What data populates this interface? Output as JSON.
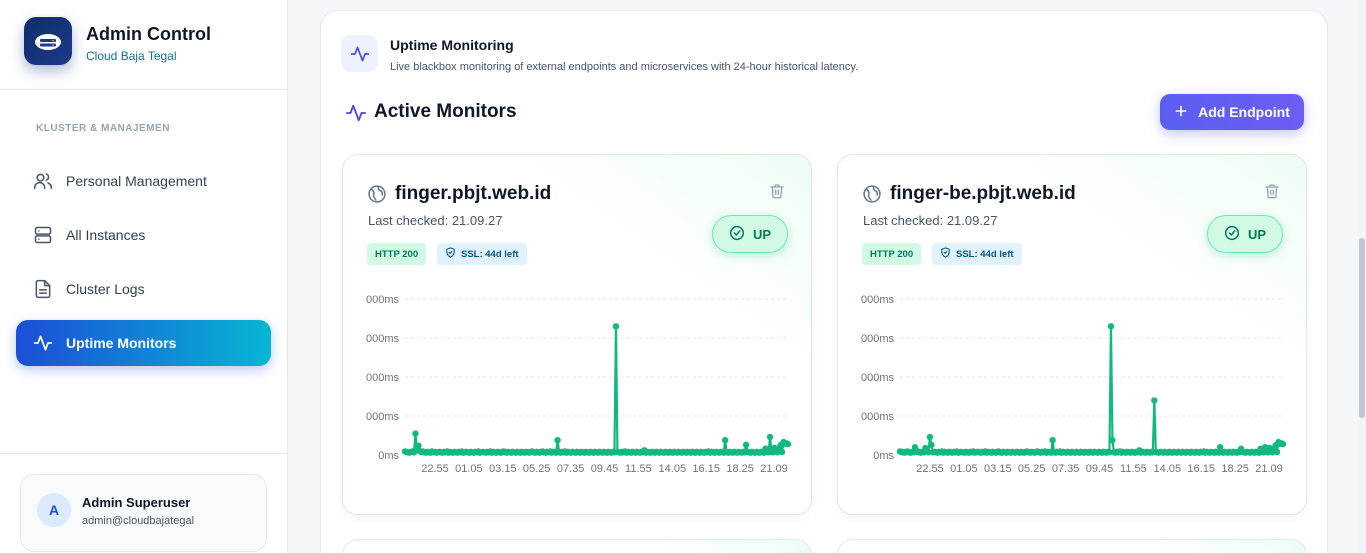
{
  "brand": {
    "title": "Admin Control",
    "subtitle": "Cloud Baja Tegal"
  },
  "sidebar": {
    "section_label": "KLUSTER & MANAJEMEN",
    "items": [
      {
        "label": "Personal Management",
        "icon": "users-icon",
        "active": false
      },
      {
        "label": "All Instances",
        "icon": "server-icon",
        "active": false
      },
      {
        "label": "Cluster Logs",
        "icon": "document-icon",
        "active": false
      },
      {
        "label": "Uptime Monitors",
        "icon": "activity-icon",
        "active": true
      }
    ]
  },
  "user": {
    "initial": "A",
    "name": "Admin Superuser",
    "email": "admin@cloudbajategal"
  },
  "header": {
    "title": "Uptime Monitoring",
    "subtitle": "Live blackbox monitoring of external endpoints and microservices with 24-hour historical latency."
  },
  "monitors_section": {
    "title": "Active Monitors",
    "add_button": "Add Endpoint"
  },
  "monitors": [
    {
      "host": "finger.pbjt.web.id",
      "last_checked": "Last checked: 21.09.27",
      "http": "HTTP 200",
      "ssl": "SSL: 44d left",
      "status": "UP"
    },
    {
      "host": "finger-be.pbjt.web.id",
      "last_checked": "Last checked: 21.09.27",
      "http": "HTTP 200",
      "ssl": "SSL: 44d left",
      "status": "UP"
    }
  ],
  "colors": {
    "accent": "#5b5ff0",
    "active_nav_start": "#1d4ed8",
    "active_nav_end": "#06b6d4",
    "up_green": "#10b981",
    "line": "#10b981"
  },
  "chart_data": [
    {
      "type": "line",
      "y_tick_labels": [
        "0ms",
        "000ms",
        "000ms",
        "000ms",
        "000ms"
      ],
      "y_ticks": [
        0,
        1000,
        2000,
        3000,
        4000
      ],
      "x_tick_labels": [
        "22.55",
        "01.05",
        "03.15",
        "05.25",
        "07.35",
        "09.45",
        "11.55",
        "14.05",
        "16.15",
        "18.25",
        "21.09"
      ],
      "ylim": [
        0,
        4000
      ],
      "grid": true,
      "series": [
        {
          "values": [
            90,
            80,
            70,
            60,
            80,
            90,
            70,
            550,
            120,
            240,
            100,
            80,
            90,
            70,
            60,
            80,
            70,
            60,
            90,
            70,
            80,
            60,
            70,
            80,
            70,
            60,
            80,
            70,
            90,
            60,
            80,
            70,
            60,
            80,
            70,
            60,
            80,
            70,
            90,
            60,
            70,
            80,
            70,
            60,
            80,
            70,
            60,
            80,
            70,
            90,
            60,
            70,
            80,
            70,
            60,
            80,
            70,
            90,
            60,
            80,
            70,
            60,
            80,
            70,
            60,
            80,
            90,
            70,
            60,
            80,
            70,
            60,
            80,
            70,
            60,
            80,
            70,
            60,
            80,
            70,
            60,
            80,
            70,
            60,
            80,
            90,
            70,
            60,
            80,
            70,
            60,
            80,
            90,
            70,
            60,
            80,
            70,
            90,
            60,
            80,
            70,
            60,
            380,
            70,
            60,
            80,
            70,
            90,
            60,
            80,
            70,
            60,
            80,
            70,
            60,
            80,
            70,
            60,
            80,
            70,
            60,
            80,
            70,
            60,
            80,
            70,
            60,
            80,
            70,
            60,
            80,
            70,
            60,
            80,
            70,
            60,
            80,
            70,
            60,
            80,
            70,
            3300,
            80,
            70,
            60,
            80,
            70,
            90,
            60,
            80,
            70,
            60,
            80,
            70,
            60,
            80,
            70,
            60,
            80,
            70,
            120,
            60,
            80,
            70,
            60,
            80,
            70,
            60,
            80,
            70,
            60,
            80,
            70,
            60,
            80,
            70,
            60,
            80,
            70,
            60,
            80,
            70,
            60,
            80,
            70,
            60,
            80,
            70,
            60,
            80,
            70,
            60,
            80,
            70,
            60,
            80,
            70,
            60,
            80,
            70,
            60,
            80,
            70,
            90,
            60,
            80,
            70,
            60,
            80,
            70,
            60,
            80,
            70,
            60,
            380,
            70,
            60,
            80,
            70,
            60,
            80,
            70,
            60,
            80,
            70,
            60,
            80,
            70,
            260,
            80,
            70,
            60,
            80,
            70,
            60,
            80,
            70,
            60,
            80,
            70,
            60,
            160,
            80,
            70,
            460,
            80,
            70,
            180,
            90,
            70,
            160,
            250,
            80,
            330,
            290,
            300,
            280
          ]
        }
      ]
    },
    {
      "type": "line",
      "y_tick_labels": [
        "0ms",
        "000ms",
        "000ms",
        "000ms",
        "000ms"
      ],
      "y_ticks": [
        0,
        1000,
        2000,
        3000,
        4000
      ],
      "x_tick_labels": [
        "22.55",
        "01.05",
        "03.15",
        "05.25",
        "07.35",
        "09.45",
        "11.55",
        "14.05",
        "16.15",
        "18.25",
        "21.09"
      ],
      "ylim": [
        0,
        4000
      ],
      "grid": true,
      "series": [
        {
          "values": [
            90,
            80,
            70,
            60,
            80,
            90,
            70,
            60,
            80,
            70,
            200,
            80,
            90,
            70,
            60,
            80,
            70,
            180,
            90,
            70,
            460,
            260,
            70,
            80,
            70,
            60,
            80,
            70,
            90,
            60,
            80,
            70,
            60,
            80,
            70,
            60,
            80,
            70,
            90,
            60,
            70,
            80,
            70,
            60,
            80,
            70,
            60,
            80,
            70,
            90,
            60,
            70,
            80,
            70,
            60,
            80,
            70,
            90,
            60,
            80,
            70,
            60,
            80,
            70,
            60,
            80,
            90,
            70,
            60,
            80,
            70,
            60,
            80,
            70,
            60,
            80,
            70,
            60,
            80,
            70,
            60,
            80,
            70,
            60,
            80,
            90,
            70,
            60,
            80,
            70,
            60,
            80,
            90,
            70,
            60,
            80,
            70,
            90,
            60,
            80,
            70,
            60,
            380,
            70,
            60,
            80,
            70,
            90,
            60,
            80,
            70,
            60,
            80,
            70,
            60,
            80,
            70,
            60,
            80,
            70,
            60,
            80,
            70,
            60,
            80,
            70,
            60,
            80,
            70,
            60,
            80,
            70,
            60,
            80,
            70,
            60,
            80,
            70,
            60,
            80,
            70,
            3300,
            380,
            70,
            60,
            80,
            70,
            90,
            60,
            80,
            70,
            60,
            80,
            70,
            60,
            80,
            70,
            60,
            80,
            70,
            120,
            60,
            80,
            70,
            60,
            80,
            70,
            60,
            80,
            70,
            1400,
            80,
            70,
            60,
            80,
            70,
            60,
            80,
            70,
            60,
            80,
            70,
            60,
            80,
            70,
            60,
            80,
            70,
            60,
            80,
            70,
            60,
            80,
            70,
            60,
            80,
            70,
            60,
            80,
            70,
            60,
            80,
            70,
            90,
            60,
            80,
            70,
            60,
            80,
            70,
            60,
            80,
            70,
            60,
            200,
            70,
            60,
            80,
            70,
            60,
            80,
            70,
            60,
            80,
            70,
            60,
            80,
            70,
            160,
            80,
            70,
            60,
            80,
            70,
            60,
            80,
            70,
            60,
            80,
            70,
            60,
            160,
            80,
            70,
            200,
            80,
            70,
            180,
            90,
            70,
            160,
            250,
            80,
            330,
            290,
            300,
            280
          ]
        }
      ]
    }
  ]
}
